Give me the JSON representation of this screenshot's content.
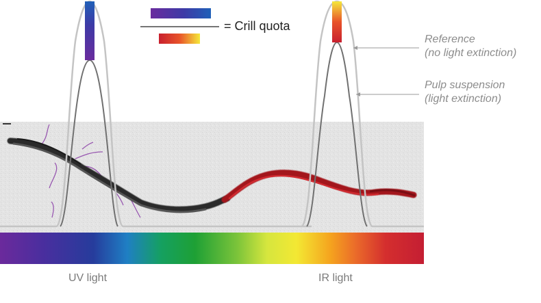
{
  "formula": {
    "equals_text": "= Crill quota",
    "numerator_gradient": [
      "#6a2c9e",
      "#3d3aa6",
      "#2060b8"
    ],
    "denominator_gradient": [
      "#c8202e",
      "#e8532a",
      "#f5e83a"
    ]
  },
  "labels": {
    "reference_line1": "Reference",
    "reference_line2": "(no light extinction)",
    "pulp_line1": "Pulp suspension",
    "pulp_line2": "(light extinction)",
    "uv_light": "UV light",
    "ir_light": "IR light"
  },
  "colors": {
    "reference_curve": "#c4c4c4",
    "pulp_curve": "#707070",
    "leader_line": "#9a9a9a",
    "fiber_dark": "#2b2b2b",
    "fiber_red": "#a3141c",
    "crill_purple": "#8b3fa8",
    "micrograph_bg": "#e6e6e6",
    "uv_bar": [
      "#6a2c9e",
      "#3d3aa6",
      "#2060b8"
    ],
    "ir_bar": [
      "#f5e83a",
      "#e8532a",
      "#c8202e"
    ]
  },
  "spectrum": {
    "stops": [
      "#6b2a9c",
      "#4a2e9e",
      "#263c9c",
      "#1f7fc4",
      "#15a060",
      "#1ea035",
      "#7cc43a",
      "#d6e63e",
      "#f3e833",
      "#f5a31e",
      "#ea6a2a",
      "#d42e2e",
      "#c41e33"
    ]
  }
}
